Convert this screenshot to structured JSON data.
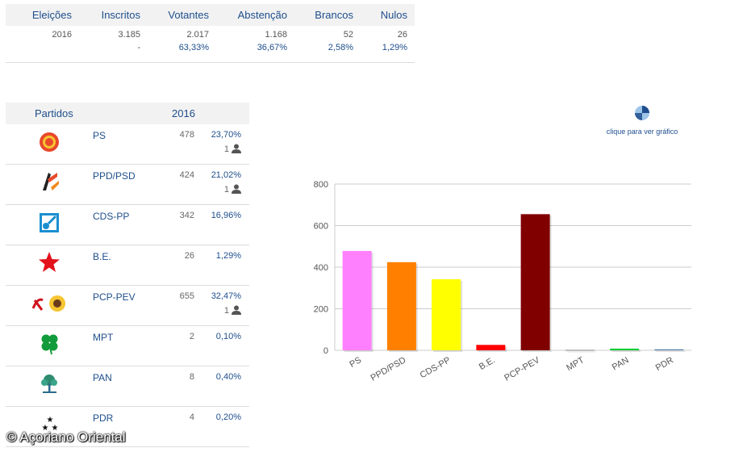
{
  "summary": {
    "headers": [
      "Eleições",
      "Inscritos",
      "Votantes",
      "Abstenção",
      "Brancos",
      "Nulos"
    ],
    "values": [
      "2016",
      "3.185",
      "2.017",
      "1.168",
      "52",
      "26"
    ],
    "percents": [
      "",
      "-",
      "63,33%",
      "36,67%",
      "2,58%",
      "1,29%"
    ]
  },
  "parties": {
    "header_party": "Partidos",
    "header_year": "2016",
    "rows": [
      {
        "name": "PS",
        "votes": "478",
        "pct": "23,70%",
        "seats": "1"
      },
      {
        "name": "PPD/PSD",
        "votes": "424",
        "pct": "21,02%",
        "seats": "1"
      },
      {
        "name": "CDS-PP",
        "votes": "342",
        "pct": "16,96%",
        "seats": ""
      },
      {
        "name": "B.E.",
        "votes": "26",
        "pct": "1,29%",
        "seats": ""
      },
      {
        "name": "PCP-PEV",
        "votes": "655",
        "pct": "32,47%",
        "seats": "1"
      },
      {
        "name": "MPT",
        "votes": "2",
        "pct": "0,10%",
        "seats": ""
      },
      {
        "name": "PAN",
        "votes": "8",
        "pct": "0,40%",
        "seats": ""
      },
      {
        "name": "PDR",
        "votes": "4",
        "pct": "0,20%",
        "seats": ""
      }
    ]
  },
  "chart_link": {
    "label": "clique para ver gráfico",
    "icon": "pie-chart-icon"
  },
  "copyright": "© Açoriano Oriental",
  "colors": {
    "accent": "#1e4e8c",
    "bars": [
      "#ff80ff",
      "#ff8000",
      "#ffff00",
      "#ff0000",
      "#800000",
      "#808080",
      "#00cc33",
      "#336699"
    ]
  },
  "chart_data": {
    "type": "bar",
    "title": "",
    "xlabel": "",
    "ylabel": "",
    "categories": [
      "PS",
      "PPD/PSD",
      "CDS-PP",
      "B.E.",
      "PCP-PEV",
      "MPT",
      "PAN",
      "PDR"
    ],
    "values": [
      478,
      424,
      342,
      26,
      655,
      2,
      8,
      4
    ],
    "ylim": [
      0,
      800
    ],
    "yticks": [
      0,
      200,
      400,
      600,
      800
    ],
    "grid": true,
    "legend": "none"
  }
}
